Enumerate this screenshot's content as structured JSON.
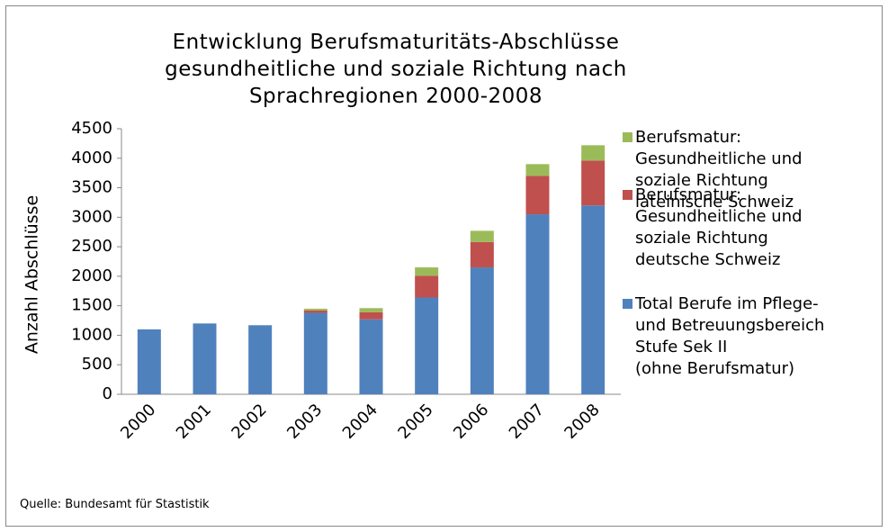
{
  "chart_data": {
    "type": "stacked_bar",
    "title": "Entwicklung Berufsmaturitäts-Abschlüsse\ngesundheitliche und soziale Richtung nach\nSprachregionen 2000-2008",
    "ylabel": "Anzahl Abschlüsse",
    "source": "Quelle: Bundesamt  für Stastistik",
    "categories": [
      "2000",
      "2001",
      "2002",
      "2003",
      "2004",
      "2005",
      "2006",
      "2007",
      "2008"
    ],
    "series": [
      {
        "name": "Total Berufe im Pflege-\nund Betreuungsbereich\nStufe Sek II\n(ohne Berufsmatur)",
        "color": "#4f81bd",
        "values": [
          1100,
          1200,
          1170,
          1380,
          1270,
          1640,
          2150,
          3050,
          3200
        ]
      },
      {
        "name": "Berufsmatur:\nGesundheitliche und\nsoziale Richtung\ndeutsche Schweiz",
        "color": "#c0504d",
        "values": [
          0,
          0,
          0,
          40,
          120,
          370,
          430,
          650,
          760
        ]
      },
      {
        "name": "Berufsmatur:\nGesundheitliche und\nsoziale Richtung\nlateinische Schweiz",
        "color": "#9bbb59",
        "values": [
          0,
          0,
          0,
          30,
          70,
          140,
          190,
          200,
          260
        ]
      }
    ],
    "ylim": [
      0,
      4500
    ],
    "yticks": [
      0,
      500,
      1000,
      1500,
      2000,
      2500,
      3000,
      3500,
      4000,
      4500
    ],
    "grid": false
  }
}
